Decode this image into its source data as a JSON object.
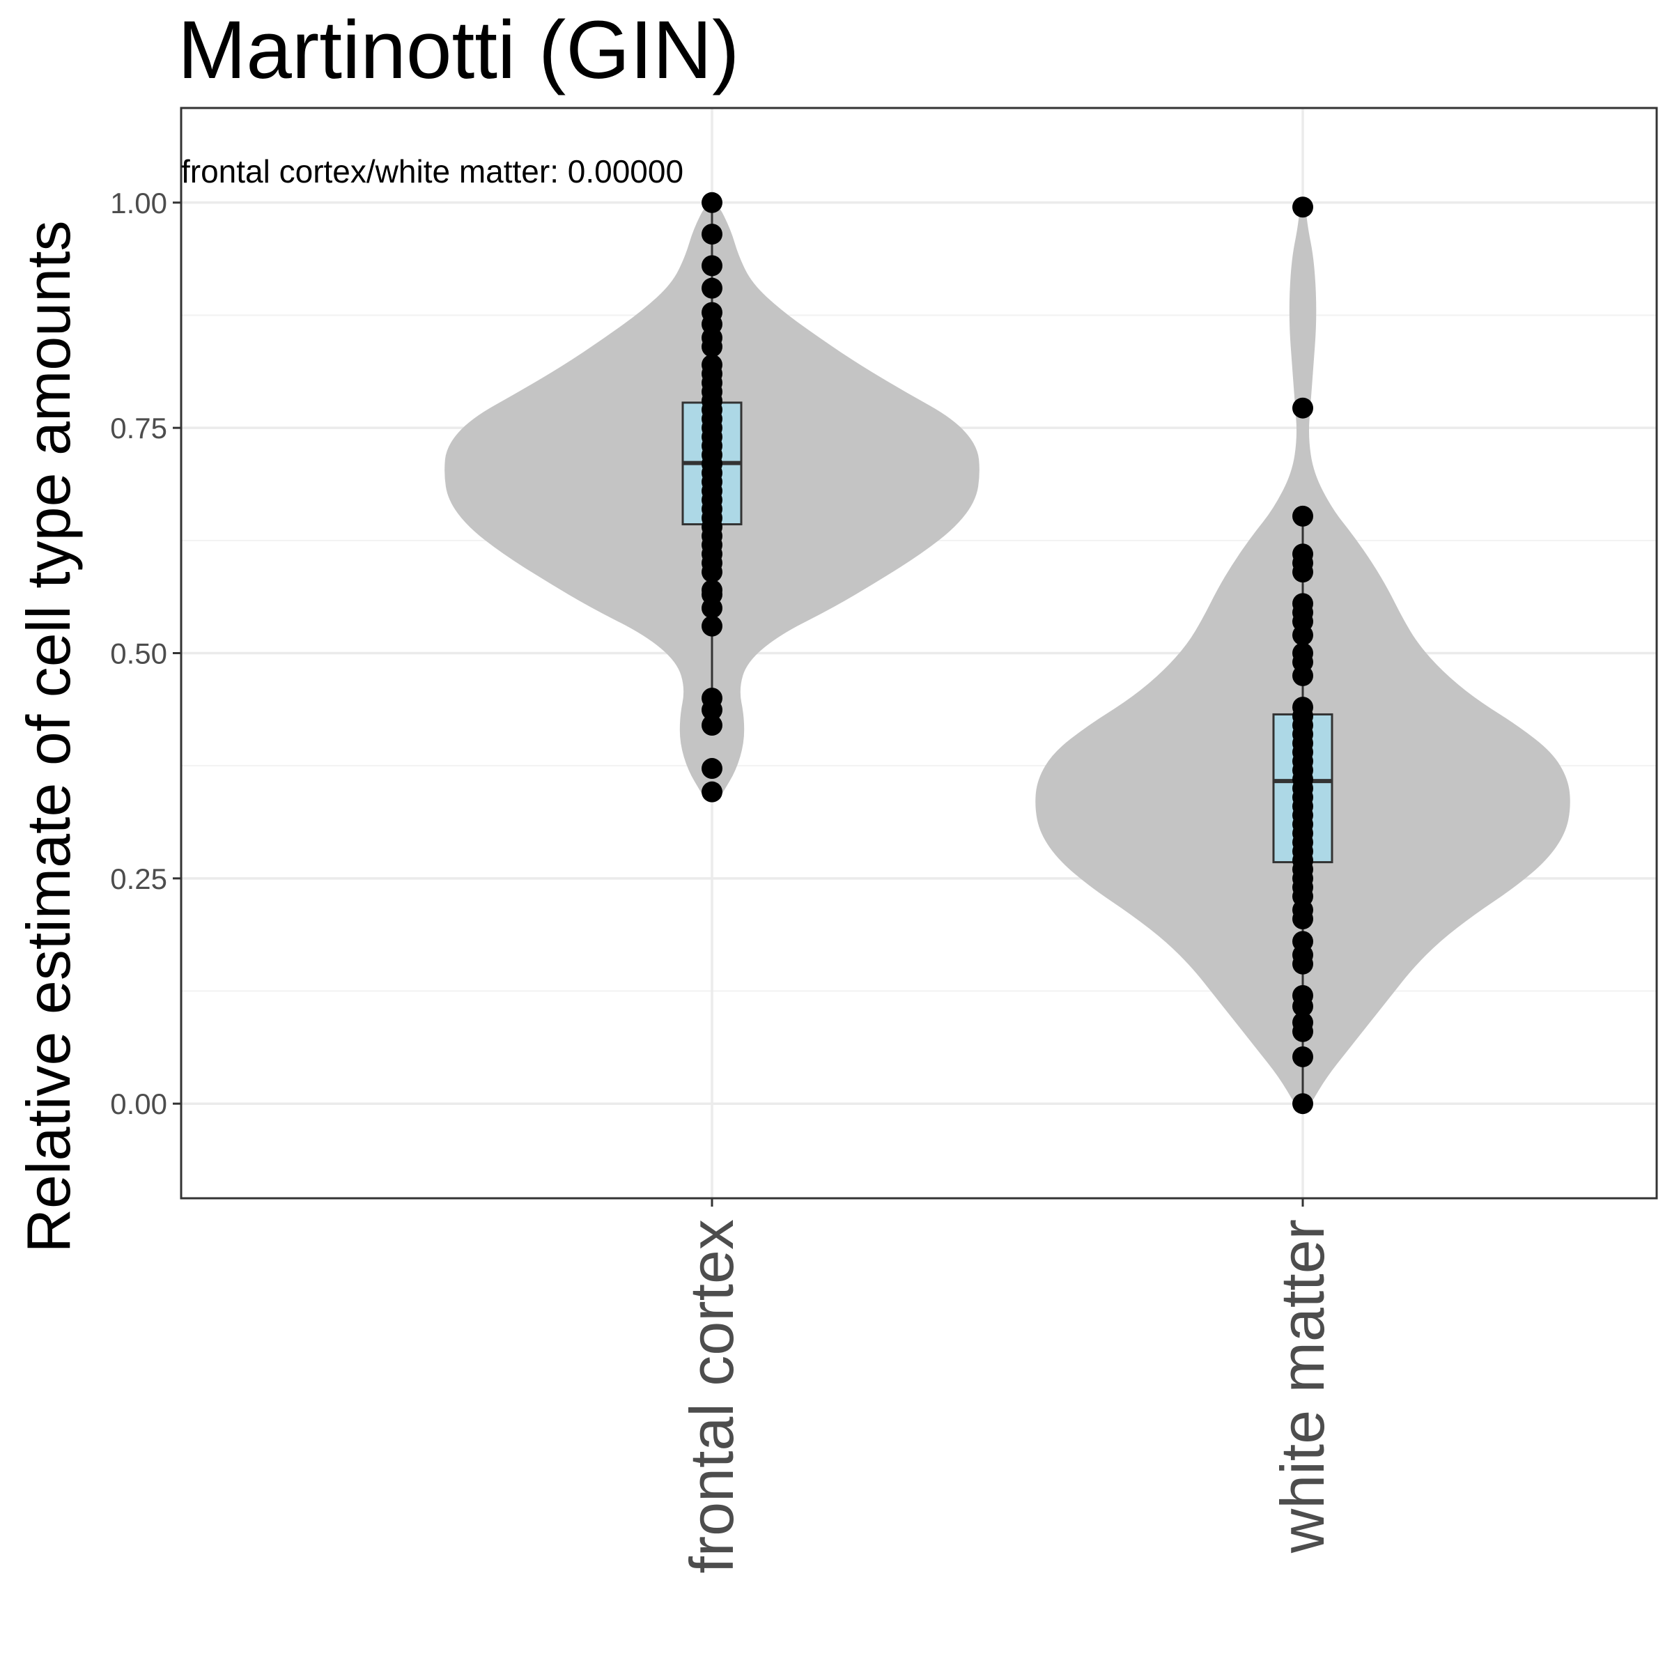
{
  "chart_data": {
    "type": "violin",
    "title": "Martinotti (GIN)",
    "ylabel": "Relative estimate of cell type amounts",
    "xlabel": "",
    "ylim": [
      -0.105,
      1.105
    ],
    "yticks": [
      0.0,
      0.25,
      0.5,
      0.75,
      1.0
    ],
    "ytick_labels": [
      "0.00",
      "0.25",
      "0.50",
      "0.75",
      "1.00"
    ],
    "grid": true,
    "categories": [
      "frontal cortex",
      "white matter"
    ],
    "annotation": "frontal cortex/white matter: 0.00000",
    "colors": {
      "violin": "#c4c4c4",
      "box": "#add8e6",
      "box_stroke": "#333333",
      "point": "#000000",
      "grid_major": "#ebebeb",
      "grid_minor": "#f2f2f2",
      "panel_border": "#333333"
    },
    "groups": [
      {
        "name": "frontal cortex",
        "box": {
          "q1": 0.643,
          "median": 0.711,
          "q3": 0.778,
          "whisker_low": 0.455,
          "whisker_high": 1.0
        },
        "violin_profile": [
          [
            0.345,
            0.04
          ],
          [
            0.37,
            0.09
          ],
          [
            0.4,
            0.12
          ],
          [
            0.43,
            0.12
          ],
          [
            0.46,
            0.1
          ],
          [
            0.49,
            0.13
          ],
          [
            0.52,
            0.25
          ],
          [
            0.55,
            0.45
          ],
          [
            0.58,
            0.62
          ],
          [
            0.61,
            0.78
          ],
          [
            0.64,
            0.91
          ],
          [
            0.67,
            0.985
          ],
          [
            0.7,
            1.0
          ],
          [
            0.73,
            0.99
          ],
          [
            0.76,
            0.9
          ],
          [
            0.79,
            0.72
          ],
          [
            0.82,
            0.55
          ],
          [
            0.85,
            0.4
          ],
          [
            0.88,
            0.26
          ],
          [
            0.91,
            0.15
          ],
          [
            0.94,
            0.1
          ],
          [
            0.97,
            0.07
          ],
          [
            1.0,
            0.02
          ]
        ],
        "points": [
          1.0,
          0.965,
          0.93,
          0.905,
          0.878,
          0.865,
          0.85,
          0.84,
          0.82,
          0.81,
          0.8,
          0.79,
          0.78,
          0.77,
          0.76,
          0.75,
          0.74,
          0.73,
          0.72,
          0.71,
          0.7,
          0.69,
          0.68,
          0.67,
          0.66,
          0.65,
          0.64,
          0.63,
          0.62,
          0.61,
          0.6,
          0.59,
          0.57,
          0.565,
          0.55,
          0.53,
          0.45,
          0.437,
          0.42,
          0.372,
          0.346
        ]
      },
      {
        "name": "white matter",
        "box": {
          "q1": 0.268,
          "median": 0.358,
          "q3": 0.432,
          "whisker_low": 0.0,
          "whisker_high": 0.65
        },
        "violin_profile": [
          [
            0.0,
            0.03
          ],
          [
            0.03,
            0.09
          ],
          [
            0.06,
            0.17
          ],
          [
            0.09,
            0.25
          ],
          [
            0.12,
            0.33
          ],
          [
            0.15,
            0.41
          ],
          [
            0.18,
            0.51
          ],
          [
            0.21,
            0.64
          ],
          [
            0.24,
            0.79
          ],
          [
            0.27,
            0.91
          ],
          [
            0.3,
            0.98
          ],
          [
            0.33,
            1.0
          ],
          [
            0.36,
            0.99
          ],
          [
            0.39,
            0.93
          ],
          [
            0.42,
            0.8
          ],
          [
            0.45,
            0.64
          ],
          [
            0.48,
            0.52
          ],
          [
            0.51,
            0.43
          ],
          [
            0.54,
            0.37
          ],
          [
            0.57,
            0.32
          ],
          [
            0.6,
            0.26
          ],
          [
            0.63,
            0.19
          ],
          [
            0.66,
            0.11
          ],
          [
            0.7,
            0.04
          ],
          [
            0.74,
            0.02
          ],
          [
            0.78,
            0.03
          ],
          [
            0.82,
            0.04
          ],
          [
            0.86,
            0.05
          ],
          [
            0.9,
            0.05
          ],
          [
            0.94,
            0.04
          ],
          [
            0.97,
            0.02
          ],
          [
            0.995,
            0.01
          ]
        ],
        "points": [
          0.995,
          0.772,
          0.652,
          0.61,
          0.6,
          0.59,
          0.555,
          0.545,
          0.535,
          0.52,
          0.5,
          0.49,
          0.475,
          0.44,
          0.43,
          0.42,
          0.41,
          0.4,
          0.39,
          0.38,
          0.37,
          0.36,
          0.35,
          0.34,
          0.33,
          0.32,
          0.31,
          0.3,
          0.29,
          0.28,
          0.27,
          0.26,
          0.25,
          0.24,
          0.23,
          0.215,
          0.205,
          0.18,
          0.165,
          0.155,
          0.12,
          0.108,
          0.09,
          0.08,
          0.052,
          0.0
        ]
      }
    ]
  }
}
